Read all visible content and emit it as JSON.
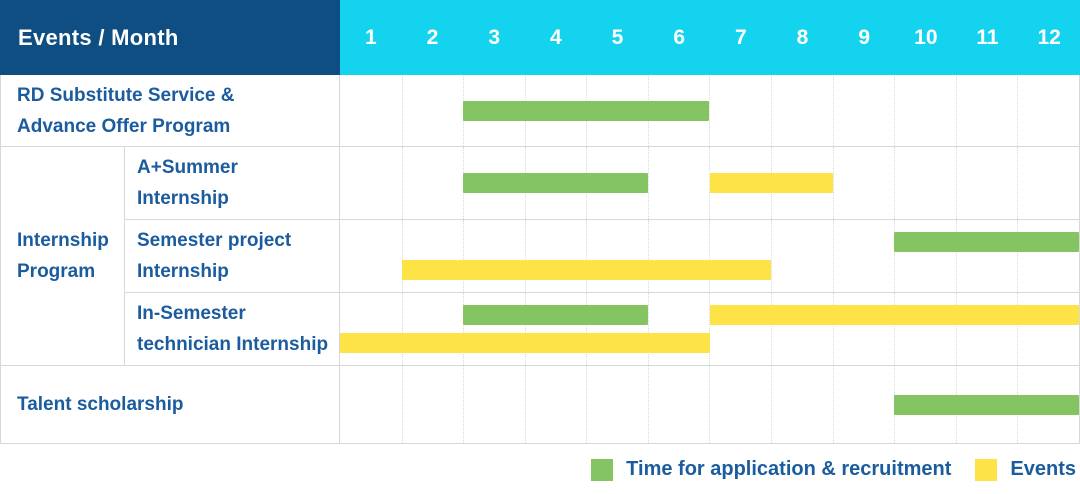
{
  "header": {
    "title": "Events / Month",
    "months": [
      "1",
      "2",
      "3",
      "4",
      "5",
      "6",
      "7",
      "8",
      "9",
      "10",
      "11",
      "12"
    ]
  },
  "group": {
    "label_lines": [
      "Internship",
      "Program"
    ]
  },
  "rows": [
    {
      "name": "rd-substitute-service-advance-offer-program",
      "label_lines": [
        "RD Substitute Service &",
        "Advance Offer Program"
      ],
      "lanes": [
        [
          {
            "type": "application",
            "start": 3,
            "end": 6
          }
        ]
      ]
    },
    {
      "name": "a-plus-summer-internship",
      "label_lines": [
        "A+Summer",
        "Internship"
      ],
      "lanes": [
        [
          {
            "type": "application",
            "start": 3,
            "end": 5
          },
          {
            "type": "event",
            "start": 7,
            "end": 8
          }
        ]
      ]
    },
    {
      "name": "semester-project-internship",
      "label_lines": [
        "Semester project",
        "Internship"
      ],
      "lanes": [
        [
          {
            "type": "application",
            "start": 10,
            "end": 12
          }
        ],
        [
          {
            "type": "event",
            "start": 2,
            "end": 7
          }
        ]
      ]
    },
    {
      "name": "in-semester-technician-internship",
      "label_lines": [
        "In-Semester",
        "technician Internship"
      ],
      "lanes": [
        [
          {
            "type": "application",
            "start": 3,
            "end": 5
          },
          {
            "type": "event",
            "start": 7,
            "end": 12
          }
        ],
        [
          {
            "type": "event",
            "start": 1,
            "end": 6
          }
        ]
      ]
    },
    {
      "name": "talent-scholarship",
      "label_lines": [
        "Talent scholarship"
      ],
      "lanes": [
        [
          {
            "type": "application",
            "start": 10,
            "end": 12
          }
        ]
      ]
    }
  ],
  "legend": {
    "items": [
      {
        "type": "application",
        "label": "Time for application & recruitment"
      },
      {
        "type": "event",
        "label": "Events"
      }
    ]
  },
  "colors": {
    "header_bg": "#0e4e82",
    "months_bg": "#14d3ee",
    "application": "#84c462",
    "event": "#fde345",
    "label_text": "#1b5c9e",
    "grid_line": "#d8d8d8"
  },
  "chart_data": {
    "type": "table",
    "subtype": "gantt",
    "title": "Events / Month",
    "x_categories": [
      "1",
      "2",
      "3",
      "4",
      "5",
      "6",
      "7",
      "8",
      "9",
      "10",
      "11",
      "12"
    ],
    "x_range": [
      1,
      12
    ],
    "legend_position": "bottom-right",
    "legend": [
      "Time for application & recruitment",
      "Events"
    ],
    "tasks": [
      {
        "group": null,
        "name": "RD Substitute Service & Advance Offer Program",
        "application_recruitment_months": [
          [
            3,
            6
          ]
        ],
        "event_months": []
      },
      {
        "group": "Internship Program",
        "name": "A+Summer Internship",
        "application_recruitment_months": [
          [
            3,
            5
          ]
        ],
        "event_months": [
          [
            7,
            8
          ]
        ]
      },
      {
        "group": "Internship Program",
        "name": "Semester project Internship",
        "application_recruitment_months": [
          [
            10,
            12
          ]
        ],
        "event_months": [
          [
            2,
            7
          ]
        ]
      },
      {
        "group": "Internship Program",
        "name": "In-Semester technician Internship",
        "application_recruitment_months": [
          [
            3,
            5
          ]
        ],
        "event_months": [
          [
            7,
            12
          ],
          [
            1,
            6
          ]
        ]
      },
      {
        "group": null,
        "name": "Talent scholarship",
        "application_recruitment_months": [
          [
            10,
            12
          ]
        ],
        "event_months": []
      }
    ]
  }
}
